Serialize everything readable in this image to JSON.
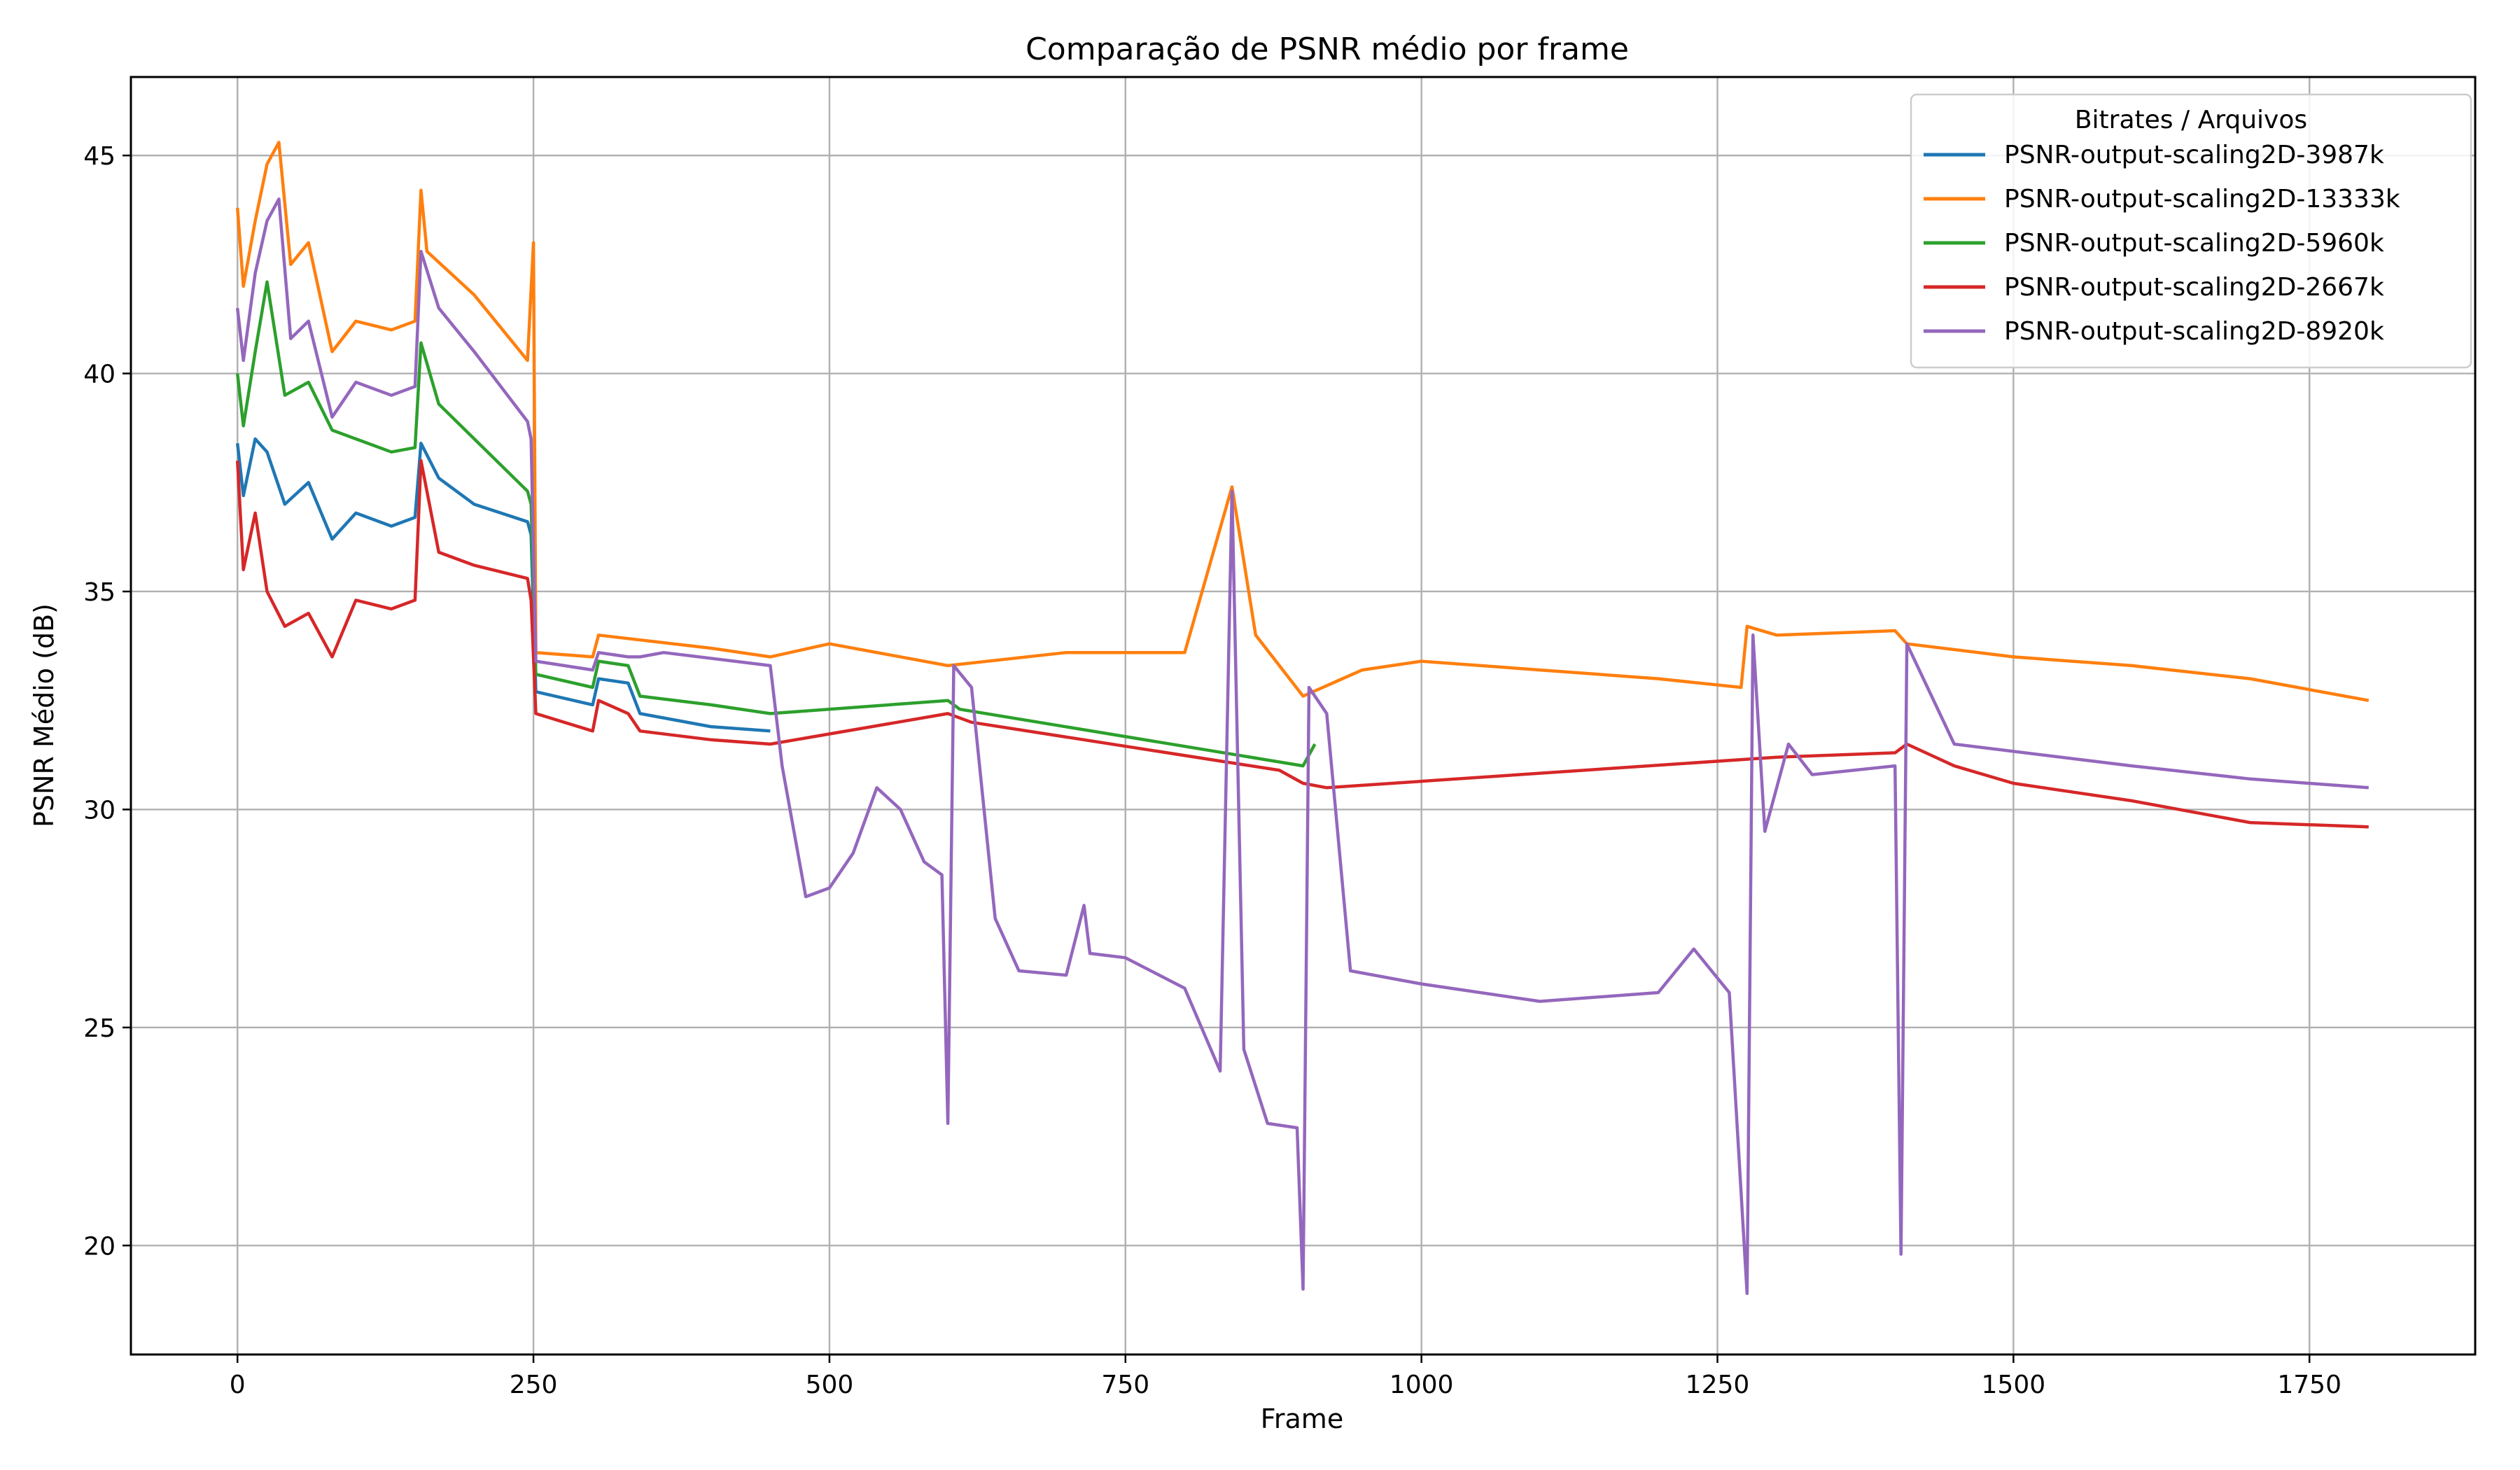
{
  "chart_data": {
    "type": "line",
    "title": "Comparação de PSNR médio por frame",
    "xlabel": "Frame",
    "ylabel": "PSNR Médio (dB)",
    "xlim": [
      -90,
      1890
    ],
    "ylim": [
      17.5,
      46.8
    ],
    "xticks": [
      0,
      250,
      500,
      750,
      1000,
      1250,
      1500,
      1750
    ],
    "yticks": [
      20,
      25,
      30,
      35,
      40,
      45
    ],
    "grid": true,
    "legend": {
      "title": "Bitrates / Arquivos",
      "placement": "top-right"
    },
    "series": [
      {
        "name": "PSNR-output-scaling2D-3987k",
        "color": "#1f77b4",
        "points": [
          [
            0,
            38.4
          ],
          [
            5,
            37.2
          ],
          [
            15,
            38.5
          ],
          [
            25,
            38.2
          ],
          [
            40,
            37.0
          ],
          [
            60,
            37.5
          ],
          [
            80,
            36.2
          ],
          [
            100,
            36.8
          ],
          [
            130,
            36.5
          ],
          [
            150,
            36.7
          ],
          [
            155,
            38.4
          ],
          [
            170,
            37.6
          ],
          [
            200,
            37.0
          ],
          [
            245,
            36.6
          ],
          [
            248,
            36.3
          ],
          [
            252,
            32.7
          ],
          [
            300,
            32.4
          ],
          [
            305,
            33.0
          ],
          [
            330,
            32.9
          ],
          [
            340,
            32.2
          ],
          [
            400,
            31.9
          ],
          [
            450,
            31.8
          ]
        ]
      },
      {
        "name": "PSNR-output-scaling2D-13333k",
        "color": "#ff7f0e",
        "points": [
          [
            0,
            43.8
          ],
          [
            5,
            42.0
          ],
          [
            15,
            43.5
          ],
          [
            25,
            44.8
          ],
          [
            35,
            45.3
          ],
          [
            45,
            42.5
          ],
          [
            60,
            43.0
          ],
          [
            80,
            40.5
          ],
          [
            100,
            41.2
          ],
          [
            130,
            41.0
          ],
          [
            150,
            41.2
          ],
          [
            155,
            44.2
          ],
          [
            160,
            42.8
          ],
          [
            200,
            41.8
          ],
          [
            245,
            40.3
          ],
          [
            250,
            43.0
          ],
          [
            252,
            33.6
          ],
          [
            300,
            33.5
          ],
          [
            305,
            34.0
          ],
          [
            400,
            33.7
          ],
          [
            450,
            33.5
          ],
          [
            500,
            33.8
          ],
          [
            600,
            33.3
          ],
          [
            700,
            33.6
          ],
          [
            800,
            33.6
          ],
          [
            840,
            37.4
          ],
          [
            860,
            34.0
          ],
          [
            900,
            32.6
          ],
          [
            950,
            33.2
          ],
          [
            1000,
            33.4
          ],
          [
            1100,
            33.2
          ],
          [
            1200,
            33.0
          ],
          [
            1270,
            32.8
          ],
          [
            1275,
            34.2
          ],
          [
            1300,
            34.0
          ],
          [
            1400,
            34.1
          ],
          [
            1410,
            33.8
          ],
          [
            1500,
            33.5
          ],
          [
            1600,
            33.3
          ],
          [
            1700,
            33.0
          ],
          [
            1800,
            32.5
          ]
        ]
      },
      {
        "name": "PSNR-output-scaling2D-5960k",
        "color": "#2ca02c",
        "points": [
          [
            0,
            40.0
          ],
          [
            5,
            38.8
          ],
          [
            15,
            40.5
          ],
          [
            25,
            42.1
          ],
          [
            40,
            39.5
          ],
          [
            60,
            39.8
          ],
          [
            80,
            38.7
          ],
          [
            100,
            38.5
          ],
          [
            130,
            38.2
          ],
          [
            150,
            38.3
          ],
          [
            155,
            40.7
          ],
          [
            170,
            39.3
          ],
          [
            200,
            38.5
          ],
          [
            245,
            37.3
          ],
          [
            248,
            37.0
          ],
          [
            252,
            33.1
          ],
          [
            300,
            32.8
          ],
          [
            305,
            33.4
          ],
          [
            330,
            33.3
          ],
          [
            340,
            32.6
          ],
          [
            400,
            32.4
          ],
          [
            450,
            32.2
          ],
          [
            600,
            32.5
          ],
          [
            610,
            32.3
          ],
          [
            900,
            31.0
          ],
          [
            910,
            31.5
          ]
        ]
      },
      {
        "name": "PSNR-output-scaling2D-2667k",
        "color": "#d62728",
        "points": [
          [
            0,
            38.0
          ],
          [
            5,
            35.5
          ],
          [
            15,
            36.8
          ],
          [
            25,
            35.0
          ],
          [
            40,
            34.2
          ],
          [
            60,
            34.5
          ],
          [
            80,
            33.5
          ],
          [
            100,
            34.8
          ],
          [
            130,
            34.6
          ],
          [
            150,
            34.8
          ],
          [
            155,
            38.0
          ],
          [
            170,
            35.9
          ],
          [
            200,
            35.6
          ],
          [
            245,
            35.3
          ],
          [
            248,
            34.8
          ],
          [
            252,
            32.2
          ],
          [
            300,
            31.8
          ],
          [
            305,
            32.5
          ],
          [
            330,
            32.2
          ],
          [
            340,
            31.8
          ],
          [
            400,
            31.6
          ],
          [
            450,
            31.5
          ],
          [
            600,
            32.2
          ],
          [
            620,
            32.0
          ],
          [
            880,
            30.9
          ],
          [
            900,
            30.6
          ],
          [
            920,
            30.5
          ],
          [
            1300,
            31.2
          ],
          [
            1400,
            31.3
          ],
          [
            1410,
            31.5
          ],
          [
            1450,
            31.0
          ],
          [
            1500,
            30.6
          ],
          [
            1600,
            30.2
          ],
          [
            1700,
            29.7
          ],
          [
            1800,
            29.6
          ]
        ]
      },
      {
        "name": "PSNR-output-scaling2D-8920k",
        "color": "#9467bd",
        "points": [
          [
            0,
            41.5
          ],
          [
            5,
            40.3
          ],
          [
            15,
            42.3
          ],
          [
            25,
            43.5
          ],
          [
            35,
            44.0
          ],
          [
            45,
            40.8
          ],
          [
            60,
            41.2
          ],
          [
            80,
            39.0
          ],
          [
            100,
            39.8
          ],
          [
            130,
            39.5
          ],
          [
            150,
            39.7
          ],
          [
            155,
            42.8
          ],
          [
            170,
            41.5
          ],
          [
            200,
            40.5
          ],
          [
            245,
            38.9
          ],
          [
            248,
            38.5
          ],
          [
            252,
            33.4
          ],
          [
            300,
            33.2
          ],
          [
            305,
            33.6
          ],
          [
            330,
            33.5
          ],
          [
            340,
            33.5
          ],
          [
            360,
            33.6
          ],
          [
            450,
            33.3
          ],
          [
            460,
            31.0
          ],
          [
            480,
            28.0
          ],
          [
            500,
            28.2
          ],
          [
            520,
            29.0
          ],
          [
            540,
            30.5
          ],
          [
            560,
            30.0
          ],
          [
            580,
            28.8
          ],
          [
            595,
            28.5
          ],
          [
            600,
            22.8
          ],
          [
            605,
            33.3
          ],
          [
            620,
            32.8
          ],
          [
            640,
            27.5
          ],
          [
            660,
            26.3
          ],
          [
            700,
            26.2
          ],
          [
            715,
            27.8
          ],
          [
            720,
            26.7
          ],
          [
            750,
            26.6
          ],
          [
            800,
            25.9
          ],
          [
            830,
            24.0
          ],
          [
            840,
            37.3
          ],
          [
            850,
            24.5
          ],
          [
            870,
            22.8
          ],
          [
            895,
            22.7
          ],
          [
            900,
            19.0
          ],
          [
            905,
            32.8
          ],
          [
            920,
            32.2
          ],
          [
            940,
            26.3
          ],
          [
            1000,
            26.0
          ],
          [
            1100,
            25.6
          ],
          [
            1200,
            25.8
          ],
          [
            1230,
            26.8
          ],
          [
            1260,
            25.8
          ],
          [
            1275,
            18.9
          ],
          [
            1280,
            34.0
          ],
          [
            1290,
            29.5
          ],
          [
            1310,
            31.5
          ],
          [
            1330,
            30.8
          ],
          [
            1400,
            31.0
          ],
          [
            1405,
            19.8
          ],
          [
            1410,
            33.8
          ],
          [
            1450,
            31.5
          ],
          [
            1600,
            31.0
          ],
          [
            1700,
            30.7
          ],
          [
            1800,
            30.5
          ]
        ]
      }
    ]
  }
}
